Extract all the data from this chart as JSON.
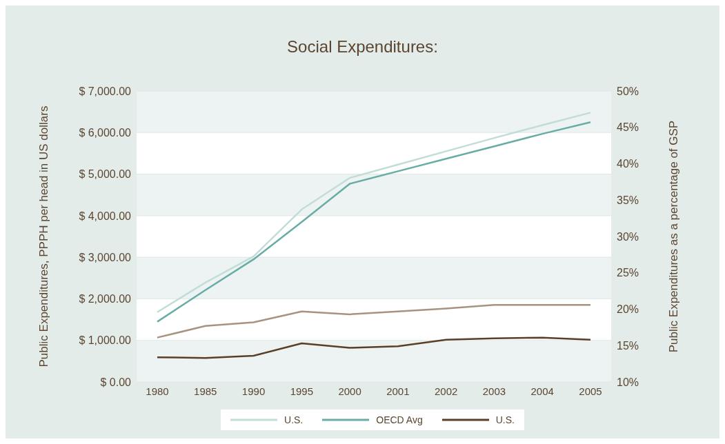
{
  "chart_data": {
    "type": "line",
    "title": "Social Expenditures:",
    "ylabel": "Public Expenditures, PPPH per head in US dollars",
    "y2label": "Public Expenditures as a percentage of GSP",
    "categories": [
      "1980",
      "1985",
      "1990",
      "1995",
      "2000",
      "2001",
      "2002",
      "2003",
      "2004",
      "2005"
    ],
    "series": [
      {
        "name": "U.S.",
        "color": "#c2ddd8",
        "values": [
          1680,
          2390,
          3020,
          4150,
          4910,
          5230,
          5550,
          5870,
          6180,
          6480
        ]
      },
      {
        "name": "OECD Avg",
        "color": "#67ada5",
        "values": [
          1450,
          2210,
          2950,
          3850,
          4770,
          5070,
          5370,
          5670,
          5970,
          6250
        ]
      },
      {
        "color": "#a89282",
        "axis": "y2",
        "values": [
          16.1,
          17.7,
          18.2,
          19.7,
          19.3,
          19.7,
          20.1,
          20.6,
          20.6,
          20.6
        ]
      },
      {
        "name": "U.S.",
        "color": "#5a3e26",
        "axis": "y2",
        "values": [
          13.4,
          13.3,
          13.6,
          15.3,
          14.7,
          14.9,
          15.8,
          16.0,
          16.1,
          15.8
        ]
      }
    ],
    "ylim": [
      0,
      7000
    ],
    "yticks": [
      {
        "value": 0,
        "label": "$ 0.00"
      },
      {
        "value": 1000,
        "label": "$ 1,000.00"
      },
      {
        "value": 2000,
        "label": "$ 2,000.00"
      },
      {
        "value": 3000,
        "label": "$ 3,000.00"
      },
      {
        "value": 4000,
        "label": "$ 4,000.00"
      },
      {
        "value": 5000,
        "label": "$ 5,000.00"
      },
      {
        "value": 6000,
        "label": "$ 6,000.00"
      },
      {
        "value": 7000,
        "label": "$ 7,000.00"
      }
    ],
    "y2lim": [
      10,
      50
    ],
    "y2ticks": [
      {
        "value": 10,
        "label": "10%"
      },
      {
        "value": 15,
        "label": "15%"
      },
      {
        "value": 20,
        "label": "20%"
      },
      {
        "value": 25,
        "label": "25%"
      },
      {
        "value": 30,
        "label": "30%"
      },
      {
        "value": 35,
        "label": "35%"
      },
      {
        "value": 40,
        "label": "40%"
      },
      {
        "value": 45,
        "label": "45%"
      },
      {
        "value": 50,
        "label": "50%"
      }
    ],
    "grid": "y",
    "legend": "bottom",
    "marker": "none",
    "line_style": "solid"
  }
}
